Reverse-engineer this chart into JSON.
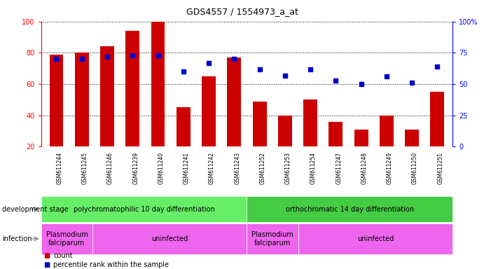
{
  "title": "GDS4557 / 1554973_a_at",
  "samples": [
    "GSM611244",
    "GSM611245",
    "GSM611246",
    "GSM611239",
    "GSM611240",
    "GSM611241",
    "GSM611242",
    "GSM611243",
    "GSM611252",
    "GSM611253",
    "GSM611254",
    "GSM611247",
    "GSM611248",
    "GSM611249",
    "GSM611250",
    "GSM611251"
  ],
  "bar_values": [
    79,
    80,
    84,
    94,
    100,
    45,
    65,
    77,
    49,
    40,
    50,
    36,
    31,
    40,
    31,
    55
  ],
  "dot_values": [
    70,
    70,
    72,
    73,
    73,
    60,
    67,
    70,
    62,
    57,
    62,
    53,
    50,
    56,
    51,
    64
  ],
  "bar_color": "#cc0000",
  "dot_color": "#0000cc",
  "ylim_left": [
    20,
    100
  ],
  "ylim_right": [
    0,
    100
  ],
  "yticks_left": [
    20,
    40,
    60,
    80,
    100
  ],
  "yticks_right": [
    0,
    25,
    50,
    75,
    100
  ],
  "ytick_labels_right": [
    "0",
    "25",
    "50",
    "75",
    "100%"
  ],
  "grid_lines": [
    40,
    60,
    80,
    100
  ],
  "dev_stage_label": "development stage",
  "infection_label": "infection",
  "dev_stage_groups": [
    {
      "label": "polychromatophilic 10 day differentiation",
      "start": 0,
      "end": 8,
      "color": "#66ee66"
    },
    {
      "label": "orthochromatic 14 day differentiation",
      "start": 8,
      "end": 16,
      "color": "#44cc44"
    }
  ],
  "infection_groups": [
    {
      "label": "Plasmodium\nfalciparum",
      "start": 0,
      "end": 2,
      "color": "#ee66ee"
    },
    {
      "label": "uninfected",
      "start": 2,
      "end": 8,
      "color": "#ee66ee"
    },
    {
      "label": "Plasmodium\nfalciparum",
      "start": 8,
      "end": 10,
      "color": "#ee66ee"
    },
    {
      "label": "uninfected",
      "start": 10,
      "end": 16,
      "color": "#ee66ee"
    }
  ],
  "legend_count_color": "#cc0000",
  "legend_dot_color": "#0000cc",
  "bg_color": "#ffffff",
  "tick_area_color": "#cccccc"
}
